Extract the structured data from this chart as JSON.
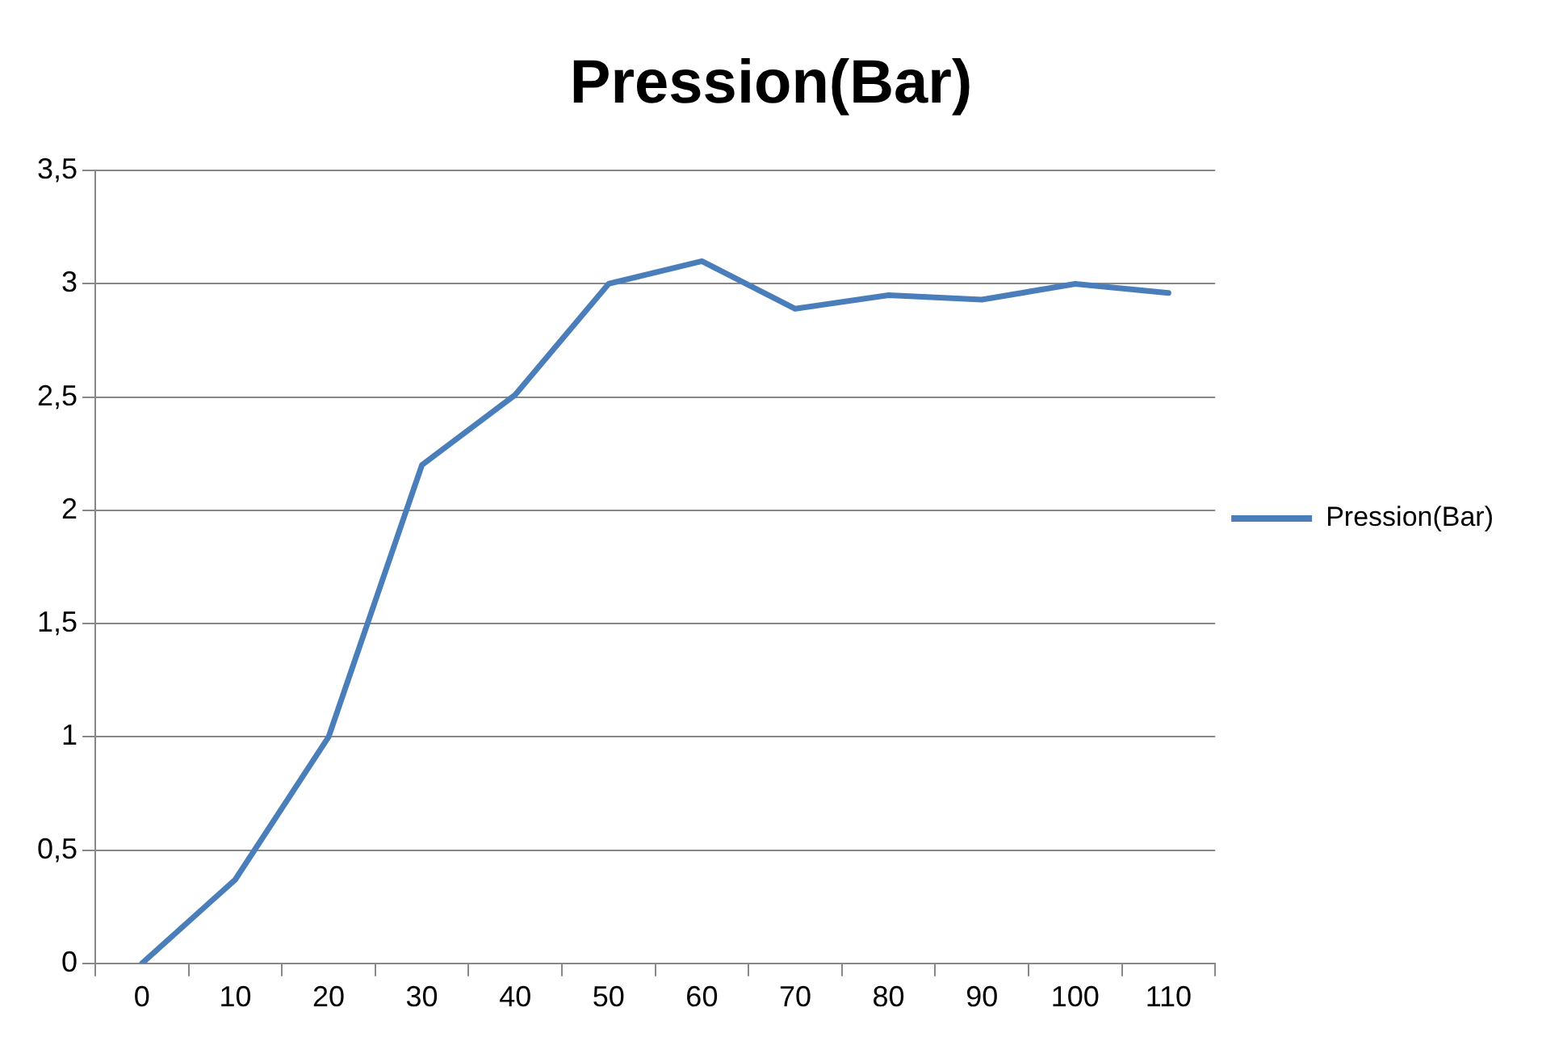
{
  "chart_data": {
    "type": "line",
    "title": "Pression(Bar)",
    "categories": [
      "0",
      "10",
      "20",
      "30",
      "40",
      "50",
      "60",
      "70",
      "80",
      "90",
      "100",
      "110"
    ],
    "series": [
      {
        "name": "Pression(Bar)",
        "color": "#4a7ebb",
        "values": [
          0,
          0.37,
          1.0,
          2.2,
          2.51,
          3.0,
          3.1,
          2.89,
          2.95,
          2.93,
          3.0,
          2.96
        ]
      }
    ],
    "ylim": [
      0,
      3.5
    ],
    "yticks": [
      0,
      {
        "value": 0.5,
        "label": "0,5"
      },
      1,
      {
        "value": 1.5,
        "label": "1,5"
      },
      2,
      {
        "value": 2.5,
        "label": "2,5"
      },
      3,
      {
        "value": 3.5,
        "label": "3,5"
      }
    ],
    "grid": "y",
    "legend": "right",
    "marker": "none",
    "line_style": "solid"
  }
}
